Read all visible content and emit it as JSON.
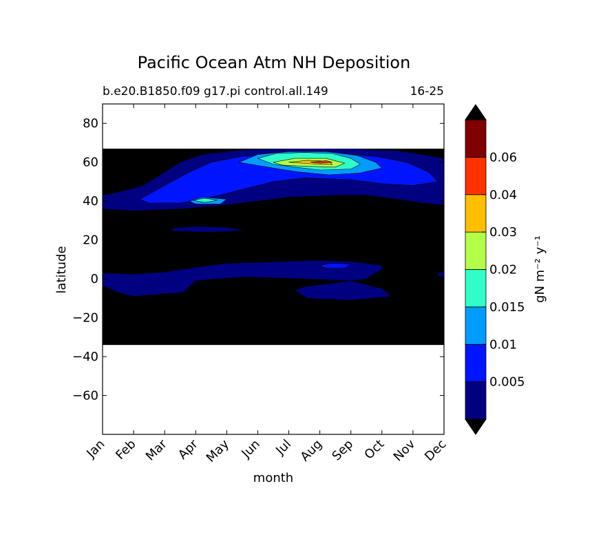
{
  "chart_data": {
    "type": "heatmap",
    "title": "Pacific Ocean Atm NH Deposition",
    "subtitle_left": "b.e20.B1850.f09 g17.pi control.all.149",
    "subtitle_right": "16-25",
    "xlabel": "month",
    "ylabel": "latitude",
    "x_categories": [
      "Jan",
      "Feb",
      "Mar",
      "Apr",
      "May",
      "Jun",
      "Jul",
      "Aug",
      "Sep",
      "Oct",
      "Nov",
      "Dec"
    ],
    "xlim": [
      1,
      12
    ],
    "ylim": [
      -80,
      90
    ],
    "y_ticks": [
      -60,
      -40,
      -20,
      0,
      20,
      40,
      60,
      80
    ],
    "y_tick_labels": [
      "−60",
      "−40",
      "−20",
      "0",
      "20",
      "40",
      "60",
      "80"
    ],
    "data_lat_range": [
      -34,
      67
    ],
    "colorbar": {
      "label": "gN m⁻² y⁻¹",
      "levels": [
        0,
        0.005,
        0.01,
        0.015,
        0.02,
        0.03,
        0.04,
        0.06,
        0.07
      ],
      "tick_labels": [
        "0.005",
        "0.01",
        "0.015",
        "0.02",
        "0.03",
        "0.04",
        "0.06"
      ],
      "colors": [
        "#000080",
        "#0015ff",
        "#009cff",
        "#2fffc7",
        "#b3ff47",
        "#ffbf00",
        "#ff3200",
        "#800000"
      ],
      "extend": "both",
      "under_color": "#000000"
    },
    "regions": [
      {
        "level": 0,
        "points": [
          [
            1.0,
            43
          ],
          [
            1.6,
            45
          ],
          [
            2.3,
            48
          ],
          [
            3.0,
            55
          ],
          [
            3.5,
            60
          ],
          [
            4.2,
            64
          ],
          [
            5.5,
            66.5
          ],
          [
            7.0,
            67
          ],
          [
            9.0,
            67
          ],
          [
            10.5,
            66
          ],
          [
            11.3,
            64
          ],
          [
            12.0,
            62
          ],
          [
            12.0,
            38
          ],
          [
            11.3,
            39
          ],
          [
            10.5,
            41
          ],
          [
            9.5,
            43
          ],
          [
            8.5,
            43
          ],
          [
            7.0,
            42
          ],
          [
            6.0,
            40
          ],
          [
            5.0,
            38
          ],
          [
            3.5,
            36
          ],
          [
            2.0,
            35
          ],
          [
            1.0,
            36
          ]
        ]
      },
      {
        "level": 0,
        "points": [
          [
            3.2,
            26
          ],
          [
            4.0,
            27
          ],
          [
            5.0,
            26.5
          ],
          [
            5.6,
            25
          ],
          [
            4.5,
            24
          ],
          [
            3.3,
            24.5
          ]
        ]
      },
      {
        "level": 0,
        "points": [
          [
            1.0,
            3
          ],
          [
            2.0,
            2.5
          ],
          [
            3.0,
            3.5
          ],
          [
            4.0,
            6
          ],
          [
            5.0,
            8
          ],
          [
            6.0,
            8.5
          ],
          [
            7.0,
            9
          ],
          [
            8.0,
            9.5
          ],
          [
            9.0,
            9
          ],
          [
            10.0,
            7
          ],
          [
            10.0,
            5
          ],
          [
            9.5,
            0
          ],
          [
            8.5,
            -2
          ],
          [
            7.5,
            -4
          ],
          [
            7.2,
            -6
          ],
          [
            7.6,
            -10
          ],
          [
            9.0,
            -11
          ],
          [
            10.3,
            -9
          ],
          [
            10.0,
            -5
          ],
          [
            9.0,
            -1
          ],
          [
            7.5,
            0
          ],
          [
            5.5,
            1
          ],
          [
            4.0,
            -1
          ],
          [
            3.6,
            -7
          ],
          [
            2.0,
            -9
          ],
          [
            1.5,
            -7
          ],
          [
            1.0,
            -3.5
          ]
        ]
      },
      {
        "level": 0,
        "points": [
          [
            11.8,
            3
          ],
          [
            12.0,
            4
          ],
          [
            12.0,
            1
          ],
          [
            11.8,
            1.5
          ]
        ]
      },
      {
        "level": 1,
        "points": [
          [
            2.2,
            41
          ],
          [
            3.0,
            48
          ],
          [
            3.8,
            55
          ],
          [
            4.5,
            60
          ],
          [
            5.5,
            63
          ],
          [
            7.0,
            64.5
          ],
          [
            8.5,
            64.5
          ],
          [
            9.8,
            63
          ],
          [
            10.8,
            60
          ],
          [
            11.5,
            55
          ],
          [
            11.8,
            50
          ],
          [
            11.0,
            48
          ],
          [
            10.0,
            49
          ],
          [
            9.0,
            51
          ],
          [
            7.5,
            52
          ],
          [
            6.5,
            50
          ],
          [
            5.5,
            46
          ],
          [
            4.5,
            42
          ],
          [
            3.5,
            39
          ],
          [
            2.5,
            39
          ]
        ]
      },
      {
        "level": 1,
        "points": [
          [
            8.0,
            7
          ],
          [
            8.4,
            8
          ],
          [
            9.0,
            7.5
          ],
          [
            8.8,
            5.5
          ],
          [
            8.2,
            5.5
          ]
        ]
      },
      {
        "level": 2,
        "points": [
          [
            3.8,
            40
          ],
          [
            4.2,
            42
          ],
          [
            5.0,
            41
          ],
          [
            4.8,
            38.5
          ],
          [
            4.0,
            38.5
          ]
        ]
      },
      {
        "level": 2,
        "points": [
          [
            5.4,
            60
          ],
          [
            6.0,
            64
          ],
          [
            7.0,
            65.5
          ],
          [
            8.2,
            65.5
          ],
          [
            9.2,
            63.5
          ],
          [
            9.8,
            60
          ],
          [
            10.0,
            57
          ],
          [
            9.3,
            54.5
          ],
          [
            8.3,
            53.5
          ],
          [
            7.3,
            55
          ],
          [
            6.5,
            57
          ]
        ]
      },
      {
        "level": 3,
        "points": [
          [
            3.9,
            40.5
          ],
          [
            4.3,
            41.5
          ],
          [
            4.7,
            40.5
          ],
          [
            4.3,
            39.3
          ]
        ]
      },
      {
        "level": 3,
        "points": [
          [
            6.0,
            62
          ],
          [
            6.6,
            64.5
          ],
          [
            7.5,
            65
          ],
          [
            8.4,
            64.5
          ],
          [
            9.0,
            62
          ],
          [
            9.3,
            59
          ],
          [
            9.0,
            56.5
          ],
          [
            8.0,
            56
          ],
          [
            7.2,
            57.5
          ],
          [
            6.5,
            59
          ]
        ]
      },
      {
        "level": 4,
        "points": [
          [
            6.5,
            60
          ],
          [
            7.2,
            62
          ],
          [
            8.2,
            62
          ],
          [
            8.8,
            59.5
          ],
          [
            8.5,
            57.5
          ],
          [
            7.5,
            58
          ],
          [
            6.8,
            58.5
          ]
        ]
      },
      {
        "level": 5,
        "points": [
          [
            7.0,
            60
          ],
          [
            7.6,
            61
          ],
          [
            8.3,
            60.5
          ],
          [
            8.4,
            58.8
          ],
          [
            7.7,
            59.2
          ]
        ]
      },
      {
        "level": 6,
        "points": [
          [
            7.7,
            60
          ],
          [
            8.2,
            60.8
          ],
          [
            8.4,
            60
          ],
          [
            8.0,
            59.5
          ]
        ]
      }
    ]
  }
}
